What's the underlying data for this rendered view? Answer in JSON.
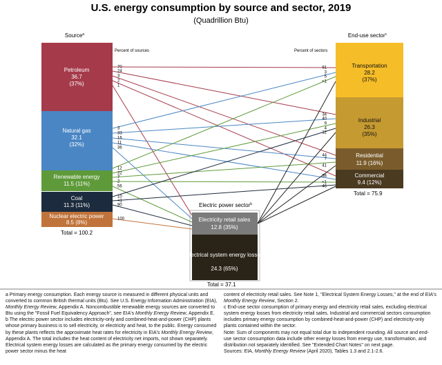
{
  "title": "U.S. energy consumption by source and sector, 2019",
  "subtitle": "(Quadrillion Btu)",
  "headers": {
    "source": "Source",
    "source_mark": "a",
    "end_use": "End-use sector",
    "end_use_mark": "c",
    "percent_of_sources": "Percent of sources",
    "percent_of_sectors": "Percent of sectors",
    "electric_power": "Electric power sector",
    "electric_power_mark": "b"
  },
  "sources": [
    {
      "id": "petroleum",
      "name": "Petroleum",
      "value": "36.7",
      "pct": "(37%)",
      "color": "#a53a4a"
    },
    {
      "id": "natgas",
      "name": "Natural gas",
      "value": "32.1",
      "pct": "(32%)",
      "color": "#4a86c4"
    },
    {
      "id": "renewable",
      "name": "Renewable energy",
      "value": "11.5",
      "pct": "(11%)",
      "color": "#5e9a3a"
    },
    {
      "id": "coal",
      "name": "Coal",
      "value": "11.3",
      "pct": "(11%)",
      "color": "#1c2b3d"
    },
    {
      "id": "nuclear",
      "name": "Nuclear electric power",
      "value": "8.5",
      "pct": "(8%)",
      "color": "#c0733a"
    }
  ],
  "source_total": "Total = 100.2",
  "sectors": [
    {
      "id": "transport",
      "name": "Transportation",
      "value": "28.2",
      "pct": "(37%)",
      "color": "#f5bd28"
    },
    {
      "id": "industrial",
      "name": "Industrial",
      "value": "26.3",
      "pct": "(35%)",
      "color": "#c59a31"
    },
    {
      "id": "residential",
      "name": "Residential",
      "value": "11.9 (16%)",
      "pct": "",
      "color": "#7a5c2c"
    },
    {
      "id": "commercial",
      "name": "Commercial",
      "value": "9.4 (12%)",
      "pct": "",
      "color": "#4a3a20"
    }
  ],
  "sector_total": "Total = 75.9",
  "electric": {
    "retail_name": "Electricity retail sales",
    "retail_value": "12.8 (35%)",
    "retail_color": "#7b7b7b",
    "losses_name": "Electrical system energy losses",
    "losses_value": "24.3 (65%)",
    "losses_color": "#2a2418",
    "total": "Total = 37.1"
  },
  "source_pct_labels": {
    "petroleum": [
      "70",
      "24",
      "3",
      "2",
      "1"
    ],
    "natgas": [
      "3",
      "33",
      "16",
      "11",
      "36"
    ],
    "renewable": [
      "12",
      "22",
      "7",
      "2",
      "56"
    ],
    "coal": [
      "10",
      "<1",
      "90"
    ],
    "nuclear": [
      "100"
    ]
  },
  "sector_pct_labels": {
    "transport": [
      "91",
      "3",
      "5",
      "<1"
    ],
    "industrial": [
      "34",
      "40",
      "9",
      "4",
      "12"
    ],
    "residential": [
      "44",
      "7",
      "41"
    ],
    "commercial": [
      "36",
      "<1",
      "46"
    ]
  },
  "notes": {
    "left": [
      "a Primary energy consumption. Each energy source is measured in different physical units and converted to common British thermal units (Btu). See U.S. Energy Information Administration (EIA), ",
      "Monthly Energy Review",
      ", Appendix A. Noncombustible renewable energy sources are converted to Btu using the \"Fossil Fuel Equivalency Approach\", see EIA's ",
      "Monthly Energy Review",
      ", Appendix E.",
      "b The electric power sector includes electricity-only and combined-heat-and-power (CHP) plants whose primary business is to sell electricity, or electricity and heat, to the public. Energy consumed by these plants reflects the approximate heat rates for electricity in EIA's ",
      "Monthly Energy Review",
      ", Appendix A. The total includes the heat content of electricity net imports, not shown separately. Electrical system energy losses are calculated as the primary energy consumed by the electric power sector minus the heat"
    ],
    "right": [
      "content of electricity retail sales. See Note 1, \"Electrical System Energy Losses,\" at the end of EIA's ",
      "Monthly Energy Review",
      ", Section 2.",
      "c End-use sector consumption of primary energy and electricity retail sales, excluding electrical system energy losses from electricity retail sales. Industrial and commercial sectors consumption includes primary energy consumption by combined-heat-and-power (CHP) and electricity-only plants contained within the sector.",
      "Note: Sum of components may not equal total due to independent rounding. All source and end-use sector consumption data include other energy losses from energy use, transformation, and distribution not separately identified. See \"Extended Chart Notes\" on next page.",
      "Sources: EIA, ",
      "Monthly Energy Review",
      " (April 2020), Tables 1.3 and 2.1-2.6."
    ]
  }
}
